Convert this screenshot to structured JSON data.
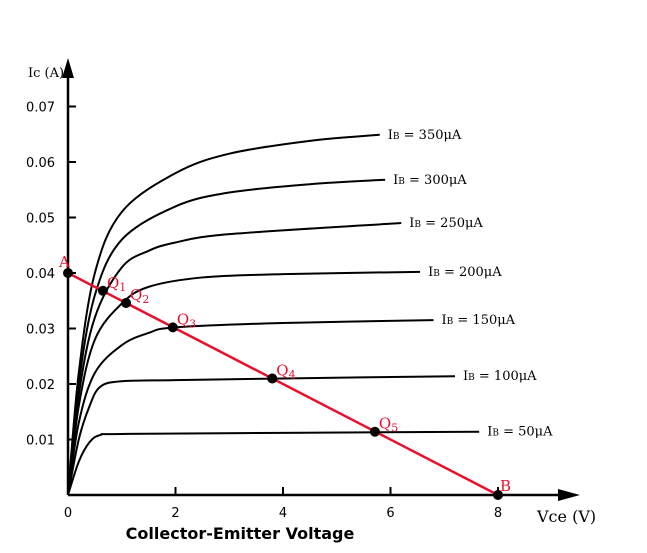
{
  "chart_data": {
    "type": "line",
    "title": "",
    "xlabel": "Collector-Emitter Voltage",
    "x_axis_unit_label": "Vce (V)",
    "y_axis_unit_label": "Ic (A)",
    "xlim": [
      0,
      8
    ],
    "ylim": [
      0,
      0.07
    ],
    "x_ticks": [
      "0",
      "2",
      "4",
      "6",
      "8"
    ],
    "y_ticks": [
      "0.01",
      "0.02",
      "0.03",
      "0.04",
      "0.05",
      "0.06",
      "0.07"
    ],
    "grid": false,
    "series": [
      {
        "name": "IB = 350μA",
        "points": [
          [
            0,
            0
          ],
          [
            0.2,
            0.022
          ],
          [
            0.5,
            0.04
          ],
          [
            1,
            0.051
          ],
          [
            2,
            0.058
          ],
          [
            3,
            0.0615
          ],
          [
            4.5,
            0.0638
          ],
          [
            5.8,
            0.0649
          ]
        ]
      },
      {
        "name": "IB = 300μA",
        "points": [
          [
            0,
            0
          ],
          [
            0.2,
            0.02
          ],
          [
            0.5,
            0.036
          ],
          [
            1,
            0.046
          ],
          [
            2,
            0.052
          ],
          [
            3,
            0.0545
          ],
          [
            4.5,
            0.056
          ],
          [
            5.9,
            0.0568
          ]
        ]
      },
      {
        "name": "IB = 250μA",
        "points": [
          [
            0,
            0
          ],
          [
            0.2,
            0.018
          ],
          [
            0.5,
            0.032
          ],
          [
            1,
            0.041
          ],
          [
            1.5,
            0.044
          ],
          [
            2,
            0.0455
          ],
          [
            3,
            0.047
          ],
          [
            6.2,
            0.049
          ]
        ]
      },
      {
        "name": "IB = 200μA",
        "points": [
          [
            0,
            0
          ],
          [
            0.2,
            0.016
          ],
          [
            0.5,
            0.028
          ],
          [
            1,
            0.0345
          ],
          [
            1.5,
            0.0375
          ],
          [
            2.5,
            0.0392
          ],
          [
            4,
            0.0398
          ],
          [
            6.55,
            0.0402
          ]
        ]
      },
      {
        "name": "IB = 150μA",
        "points": [
          [
            0,
            0
          ],
          [
            0.2,
            0.013
          ],
          [
            0.5,
            0.022
          ],
          [
            1,
            0.027
          ],
          [
            1.5,
            0.0292
          ],
          [
            2,
            0.0302
          ],
          [
            4,
            0.031
          ],
          [
            6.8,
            0.0315
          ]
        ]
      },
      {
        "name": "IB = 100μA",
        "points": [
          [
            0,
            0
          ],
          [
            0.2,
            0.01
          ],
          [
            0.4,
            0.016
          ],
          [
            0.6,
            0.0195
          ],
          [
            1,
            0.0205
          ],
          [
            2,
            0.0207
          ],
          [
            4,
            0.021
          ],
          [
            7.2,
            0.0214
          ]
        ]
      },
      {
        "name": "IB = 50μA",
        "points": [
          [
            0,
            0
          ],
          [
            0.2,
            0.006
          ],
          [
            0.4,
            0.0095
          ],
          [
            0.6,
            0.0108
          ],
          [
            1,
            0.011
          ],
          [
            4,
            0.0112
          ],
          [
            7.65,
            0.0114
          ]
        ]
      }
    ],
    "load_line": {
      "color": "#e8112d",
      "start": {
        "label": "A",
        "x": 0,
        "y": 0.04
      },
      "end": {
        "label": "B",
        "x": 8,
        "y": 0
      }
    },
    "operating_points": [
      {
        "label": "Q1",
        "x": 0.65,
        "y": 0.0368
      },
      {
        "label": "Q2",
        "x": 1.08,
        "y": 0.0346
      },
      {
        "label": "Q3",
        "x": 1.95,
        "y": 0.0302
      },
      {
        "label": "Q4",
        "x": 3.8,
        "y": 0.021
      },
      {
        "label": "Q5",
        "x": 5.71,
        "y": 0.0114
      }
    ]
  }
}
